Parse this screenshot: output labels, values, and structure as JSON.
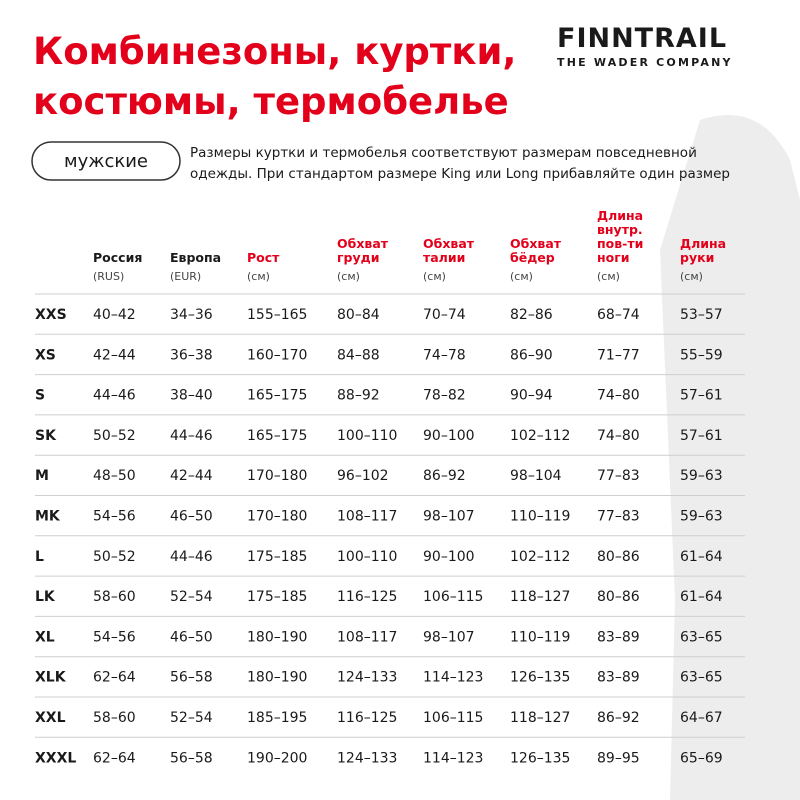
{
  "header": {
    "title_lines": [
      "Комбинезоны, куртки,",
      "костюмы, термобелье"
    ],
    "brand": "FINNTRAIL",
    "tagline": "THE WADER COMPANY"
  },
  "badge": "мужские",
  "note_lines": [
    "Размеры куртки и термобелья соответствуют размерам повседневной",
    "одежды. При стандартом размере King или Long прибавляйте один размер"
  ],
  "table": {
    "columns": [
      {
        "name_lines": [
          "Россия"
        ],
        "unit": "(RUS)",
        "color": "#1a1a1a"
      },
      {
        "name_lines": [
          "Европа"
        ],
        "unit": "(EUR)",
        "color": "#1a1a1a"
      },
      {
        "name_lines": [
          "Рост"
        ],
        "unit": "(см)",
        "color": "#e3001b"
      },
      {
        "name_lines": [
          "Обхват",
          "груди"
        ],
        "unit": "(см)",
        "color": "#e3001b"
      },
      {
        "name_lines": [
          "Обхват",
          "талии"
        ],
        "unit": "(см)",
        "color": "#e3001b"
      },
      {
        "name_lines": [
          "Обхват",
          "бёдер"
        ],
        "unit": "(см)",
        "color": "#e3001b"
      },
      {
        "name_lines": [
          "Длина",
          "внутр.",
          "пов-ти",
          "ноги"
        ],
        "unit": "(см)",
        "color": "#e3001b"
      },
      {
        "name_lines": [
          "Длина",
          "руки"
        ],
        "unit": "(см)",
        "color": "#e3001b"
      }
    ],
    "rows": [
      [
        "XXS",
        "40–42",
        "34–36",
        "155–165",
        "80–84",
        "70–74",
        "82–86",
        "68–74",
        "53–57"
      ],
      [
        "XS",
        "42–44",
        "36–38",
        "160–170",
        "84–88",
        "74–78",
        "86–90",
        "71–77",
        "55–59"
      ],
      [
        "S",
        "44–46",
        "38–40",
        "165–175",
        "88–92",
        "78–82",
        "90–94",
        "74–80",
        "57–61"
      ],
      [
        "SK",
        "50–52",
        "44–46",
        "165–175",
        "100–110",
        "90–100",
        "102–112",
        "74–80",
        "57–61"
      ],
      [
        "M",
        "48–50",
        "42–44",
        "170–180",
        "96–102",
        "86–92",
        "98–104",
        "77–83",
        "59–63"
      ],
      [
        "MK",
        "54–56",
        "46–50",
        "170–180",
        "108–117",
        "98–107",
        "110–119",
        "77–83",
        "59–63"
      ],
      [
        "L",
        "50–52",
        "44–46",
        "175–185",
        "100–110",
        "90–100",
        "102–112",
        "80–86",
        "61–64"
      ],
      [
        "LK",
        "58–60",
        "52–54",
        "175–185",
        "116–125",
        "106–115",
        "118–127",
        "80–86",
        "61–64"
      ],
      [
        "XL",
        "54–56",
        "46–50",
        "180–190",
        "108–117",
        "98–107",
        "110–119",
        "83–89",
        "63–65"
      ],
      [
        "XLK",
        "62–64",
        "56–58",
        "180–190",
        "124–133",
        "114–123",
        "126–135",
        "83–89",
        "63–65"
      ],
      [
        "XXL",
        "58–60",
        "52–54",
        "185–195",
        "116–125",
        "106–115",
        "118–127",
        "86–92",
        "64–67"
      ],
      [
        "XXXL",
        "62–64",
        "56–58",
        "190–200",
        "124–133",
        "114–123",
        "126–135",
        "89–95",
        "65–69"
      ]
    ]
  }
}
